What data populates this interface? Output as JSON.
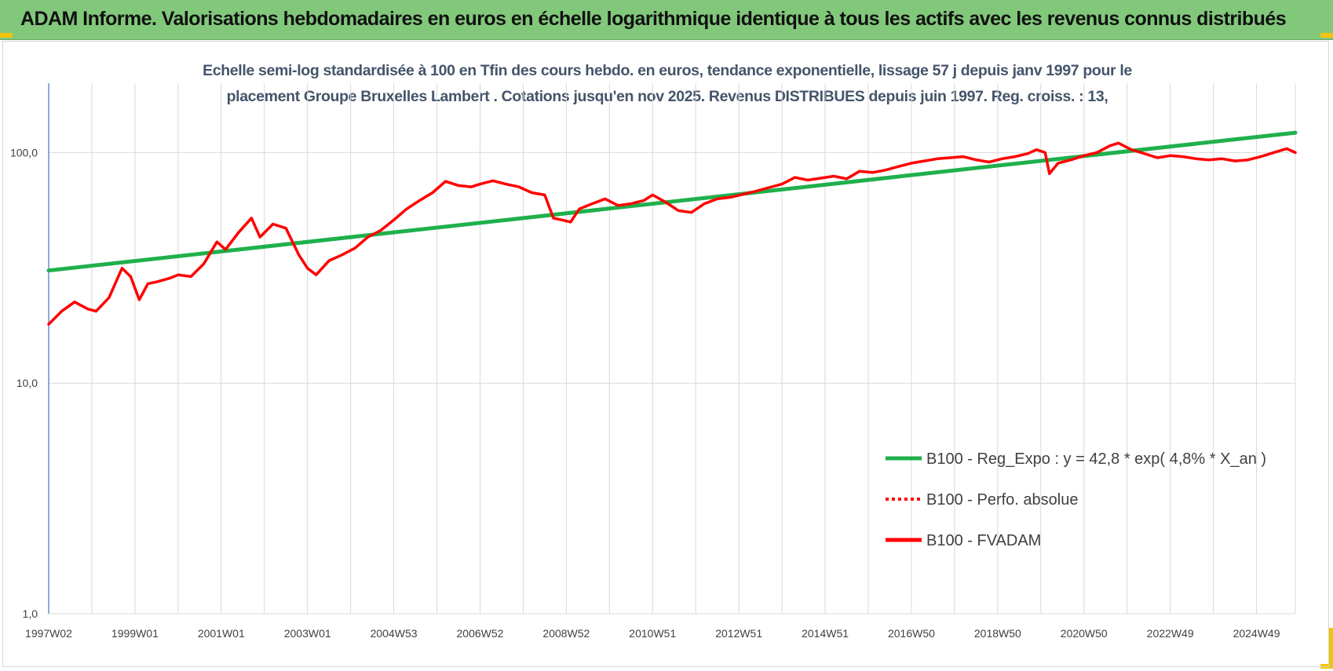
{
  "header": {
    "title": "ADAM Informe. Valorisations hebdomadaires en euros en échelle logarithmique identique à tous les actifs avec les revenus connus distribués"
  },
  "chart_data": {
    "type": "line",
    "subtitle_lines": [
      "Echelle semi-log standardisée à 100 en Tfin des cours hebdo. en euros, tendance exponentielle, lissage 57 j depuis janv 1997 pour le",
      "placement Groupe Bruxelles Lambert . Cotations jusqu'en nov 2025. Revenus DISTRIBUES depuis juin 1997. Reg. croiss. : 13,"
    ],
    "y_scale": "log",
    "ylim": [
      1,
      200
    ],
    "y_ticks": [
      {
        "value": 100,
        "label": "100,0"
      },
      {
        "value": 10,
        "label": "10,0"
      },
      {
        "value": 1,
        "label": "1,0"
      }
    ],
    "xlim": [
      1997.0,
      2025.9
    ],
    "x_ticks": [
      {
        "value": 1997.0,
        "label": "1997W02"
      },
      {
        "value": 1999.0,
        "label": "1999W01"
      },
      {
        "value": 2001.0,
        "label": "2001W01"
      },
      {
        "value": 2003.0,
        "label": "2003W01"
      },
      {
        "value": 2005.0,
        "label": "2004W53"
      },
      {
        "value": 2007.0,
        "label": "2006W52"
      },
      {
        "value": 2009.0,
        "label": "2008W52"
      },
      {
        "value": 2011.0,
        "label": "2010W51"
      },
      {
        "value": 2013.0,
        "label": "2012W51"
      },
      {
        "value": 2015.0,
        "label": "2014W51"
      },
      {
        "value": 2017.0,
        "label": "2016W50"
      },
      {
        "value": 2019.0,
        "label": "2018W50"
      },
      {
        "value": 2021.0,
        "label": "2020W50"
      },
      {
        "value": 2023.0,
        "label": "2022W49"
      },
      {
        "value": 2025.0,
        "label": "2024W49"
      }
    ],
    "grid": {
      "vertical": true,
      "horizontal": true
    },
    "legend_position": "bottom-right",
    "series": [
      {
        "name": "B100 - Reg_Expo : y = 42,8 * exp( 4,8% *  X_an )",
        "color": "#1fb04c",
        "style": "solid",
        "x": [
          1997.0,
          2025.9
        ],
        "y": [
          30.8,
          122.0
        ]
      },
      {
        "name": "B100 - Perfo. absolue",
        "color": "#ff0000",
        "style": "dotted",
        "x": [],
        "y": []
      },
      {
        "name": "B100 - FVADAM",
        "color": "#ff0000",
        "style": "solid",
        "x": [
          1997.0,
          1997.3,
          1997.6,
          1997.9,
          1998.1,
          1998.4,
          1998.7,
          1998.9,
          1999.1,
          1999.3,
          1999.5,
          1999.8,
          2000.0,
          2000.3,
          2000.6,
          2000.9,
          2001.1,
          2001.4,
          2001.7,
          2001.9,
          2002.2,
          2002.5,
          2002.8,
          2003.0,
          2003.2,
          2003.5,
          2003.8,
          2004.1,
          2004.4,
          2004.7,
          2005.0,
          2005.3,
          2005.6,
          2005.9,
          2006.2,
          2006.5,
          2006.8,
          2007.0,
          2007.3,
          2007.6,
          2007.9,
          2008.2,
          2008.5,
          2008.7,
          2008.9,
          2009.1,
          2009.3,
          2009.6,
          2009.9,
          2010.2,
          2010.5,
          2010.8,
          2011.0,
          2011.3,
          2011.6,
          2011.9,
          2012.2,
          2012.5,
          2012.8,
          2013.1,
          2013.4,
          2013.7,
          2014.0,
          2014.3,
          2014.6,
          2014.9,
          2015.2,
          2015.5,
          2015.8,
          2016.1,
          2016.4,
          2016.7,
          2017.0,
          2017.3,
          2017.6,
          2017.9,
          2018.2,
          2018.5,
          2018.8,
          2019.1,
          2019.4,
          2019.7,
          2019.9,
          2020.1,
          2020.2,
          2020.4,
          2020.7,
          2021.0,
          2021.3,
          2021.6,
          2021.8,
          2022.1,
          2022.4,
          2022.7,
          2023.0,
          2023.3,
          2023.6,
          2023.9,
          2024.2,
          2024.5,
          2024.8,
          2025.1,
          2025.4,
          2025.7,
          2025.9
        ],
        "y": [
          18.0,
          20.5,
          22.5,
          21.0,
          20.5,
          23.5,
          31.5,
          29.0,
          23.0,
          27.0,
          27.5,
          28.5,
          29.5,
          29.0,
          33.0,
          41.0,
          38.0,
          45.0,
          52.0,
          43.0,
          49.0,
          47.0,
          36.0,
          31.5,
          29.5,
          34.0,
          36.0,
          38.5,
          43.0,
          46.0,
          51.0,
          57.0,
          62.0,
          67.0,
          75.0,
          72.0,
          71.0,
          73.0,
          75.5,
          73.0,
          71.0,
          67.0,
          65.5,
          52.0,
          51.0,
          50.0,
          57.0,
          60.0,
          63.0,
          59.0,
          60.0,
          62.0,
          65.5,
          61.0,
          56.0,
          55.0,
          60.0,
          63.0,
          64.0,
          66.0,
          68.0,
          70.5,
          73.0,
          78.0,
          76.0,
          77.5,
          79.0,
          77.0,
          83.0,
          82.0,
          84.0,
          87.0,
          90.0,
          92.0,
          94.0,
          95.0,
          96.0,
          93.0,
          91.0,
          94.0,
          96.0,
          99.0,
          103.0,
          100.0,
          81.0,
          90.0,
          93.0,
          97.0,
          100.0,
          107.0,
          110.0,
          103.0,
          99.0,
          95.0,
          97.0,
          96.0,
          94.0,
          93.0,
          94.0,
          92.0,
          93.0,
          96.0,
          100.0,
          104.0,
          100.0
        ]
      }
    ]
  }
}
